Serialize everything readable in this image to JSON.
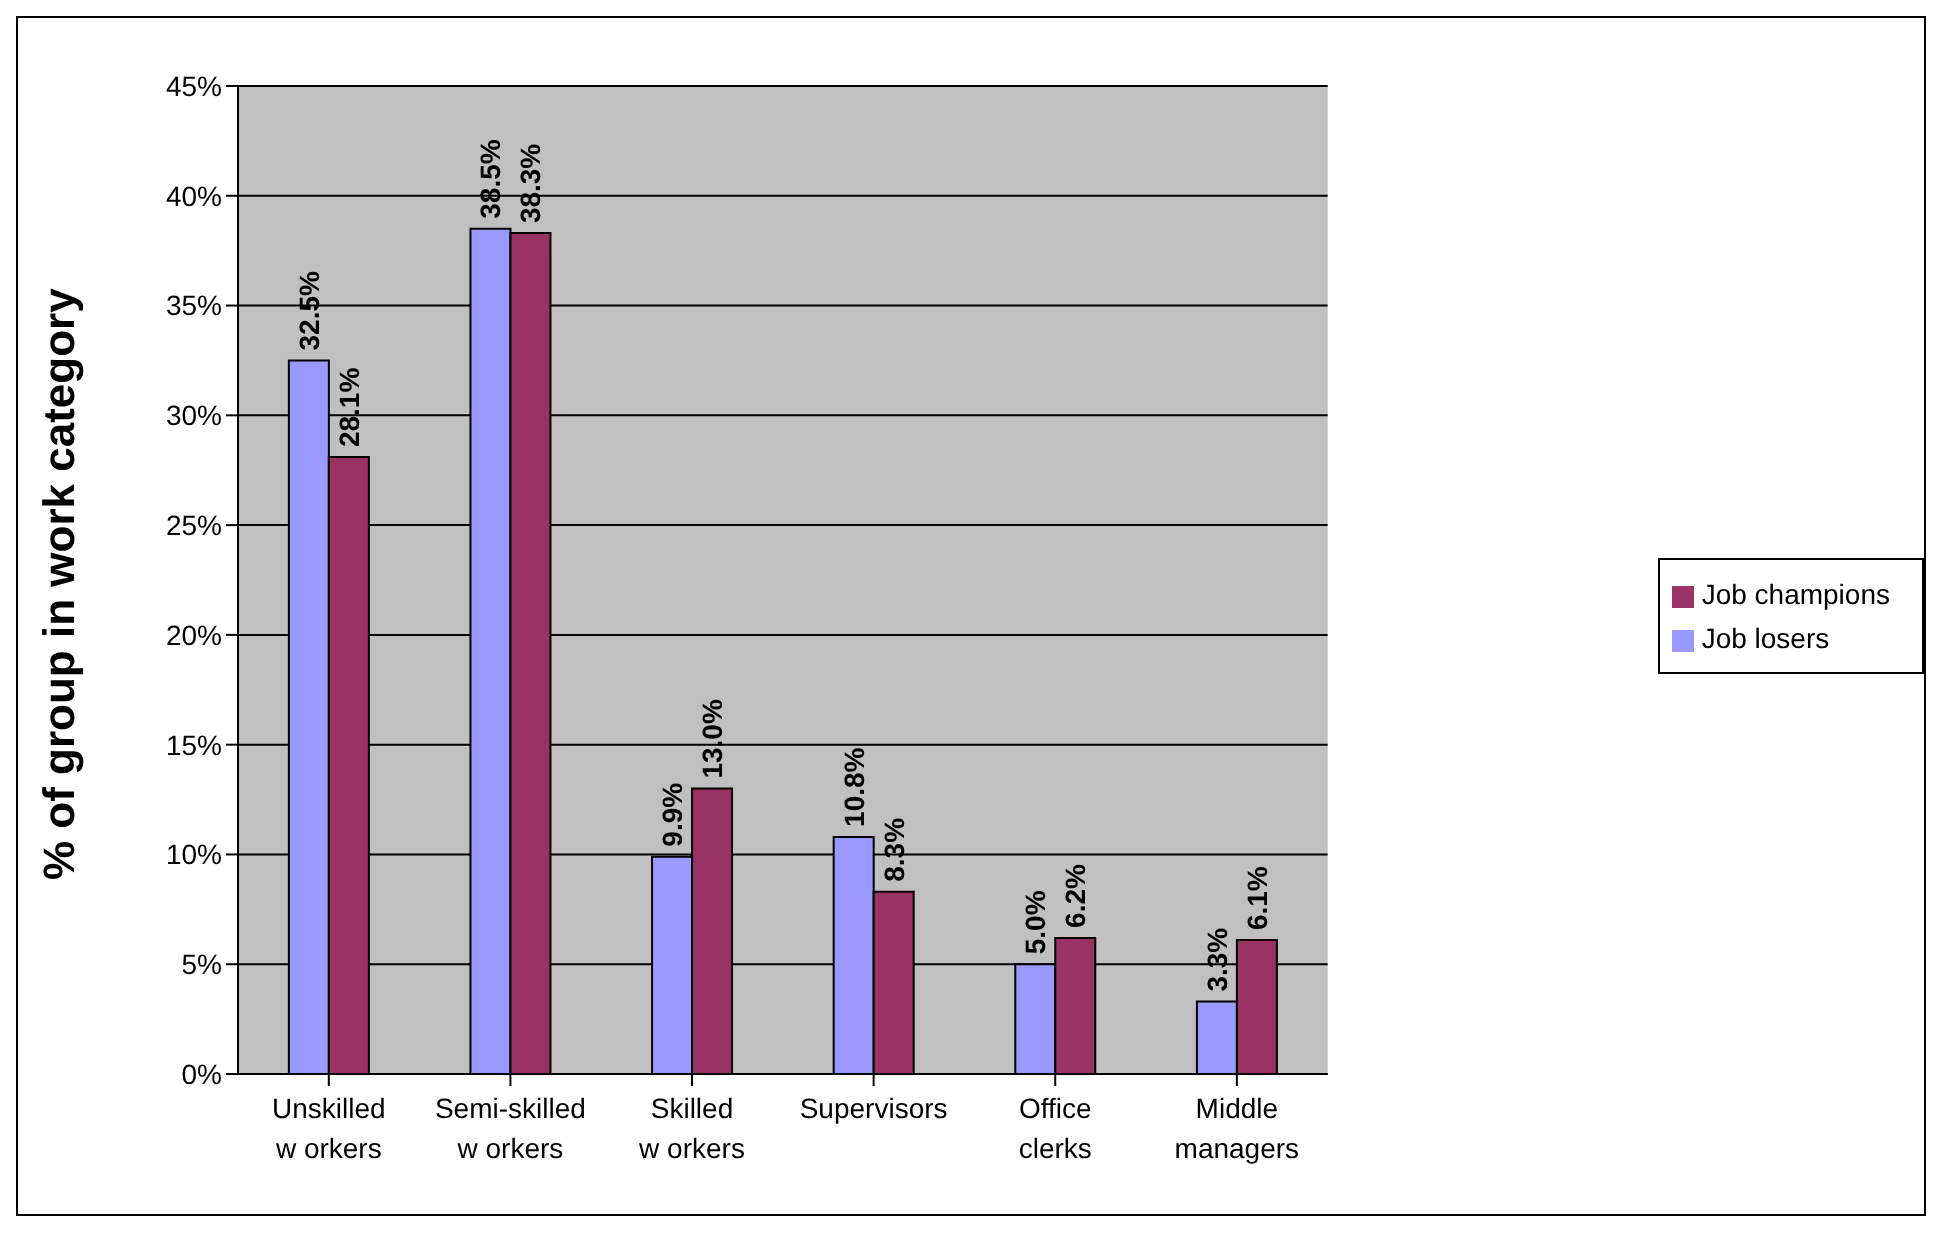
{
  "chart_data": {
    "type": "bar",
    "ylabel": "% of group in work category",
    "categories": [
      "Unskilled w orkers",
      "Semi-skilled w orkers",
      "Skilled w orkers",
      "Supervisors",
      "Office clerks",
      "Middle managers"
    ],
    "series": [
      {
        "name": "Job losers",
        "color": "#9999ff",
        "values": [
          32.5,
          38.5,
          9.9,
          10.8,
          5.0,
          3.3
        ],
        "value_labels": [
          "32.5%",
          "38.5%",
          "9.9%",
          "10.8%",
          "5.0%",
          "3.3%"
        ]
      },
      {
        "name": "Job champions",
        "color": "#993366",
        "values": [
          28.1,
          38.3,
          13.0,
          8.3,
          6.2,
          6.1
        ],
        "value_labels": [
          "28.1%",
          "38.3%",
          "13.0%",
          "8.3%",
          "6.2%",
          "6.1%"
        ]
      }
    ],
    "ylim": [
      0,
      45
    ],
    "yticks": [
      {
        "value": 0,
        "label": "0%"
      },
      {
        "value": 5,
        "label": "5%"
      },
      {
        "value": 10,
        "label": "10%"
      },
      {
        "value": 15,
        "label": "15%"
      },
      {
        "value": 20,
        "label": "20%"
      },
      {
        "value": 25,
        "label": "25%"
      },
      {
        "value": 30,
        "label": "30%"
      },
      {
        "value": 35,
        "label": "35%"
      },
      {
        "value": 40,
        "label": "40%"
      },
      {
        "value": 45,
        "label": "45%"
      }
    ],
    "grid": "y",
    "legend": "right"
  }
}
